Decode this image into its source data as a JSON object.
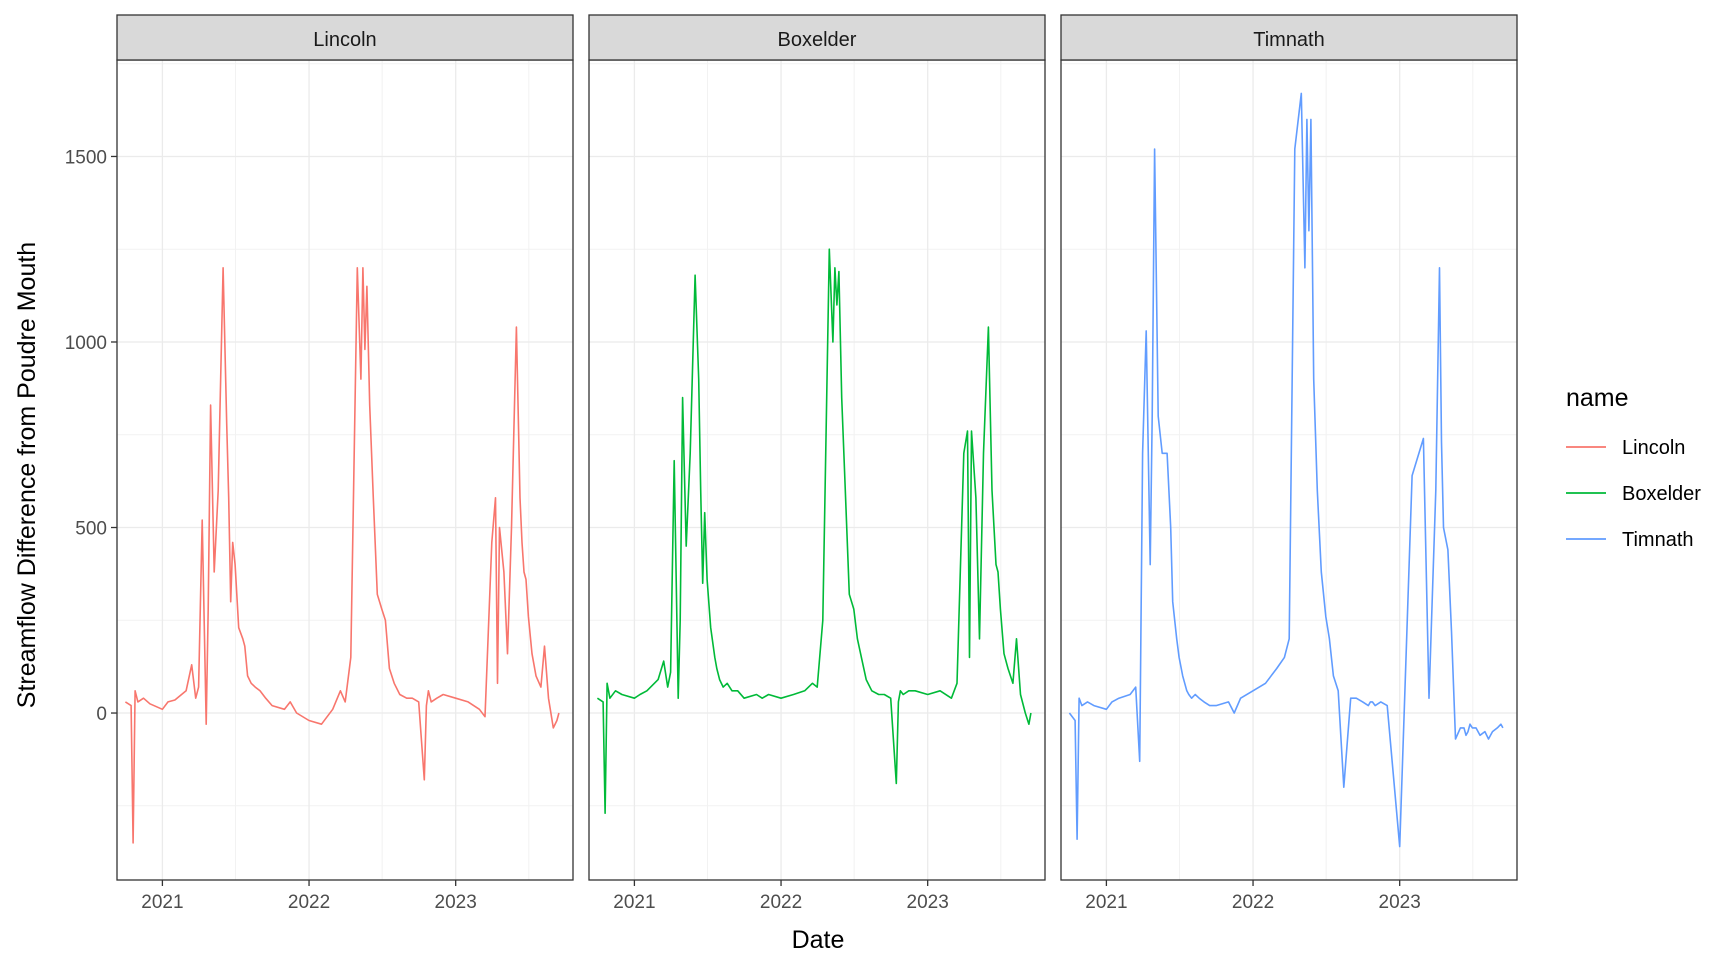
{
  "chart_data": {
    "type": "line",
    "layout": "facet",
    "xlabel": "Date",
    "ylabel": "Streamflow Difference from Poudre Mouth",
    "x_ticks": [
      "2021",
      "2022",
      "2023"
    ],
    "y_ticks": [
      0,
      500,
      1000,
      1500
    ],
    "xlim": [
      "2020-09-10",
      "2023-10-20"
    ],
    "ylim": [
      -450,
      1760
    ],
    "grid": true,
    "legend": {
      "title": "name",
      "position": "right",
      "entries": [
        "Lincoln",
        "Boxelder",
        "Timnath"
      ]
    },
    "colors": {
      "Lincoln": "#F8766D",
      "Boxelder": "#00BA38",
      "Timnath": "#619CFF"
    },
    "panels": [
      {
        "name": "Lincoln",
        "x": [
          "2020-10-01",
          "2020-10-15",
          "2020-10-20",
          "2020-10-25",
          "2020-11-01",
          "2020-11-15",
          "2020-12-01",
          "2021-01-01",
          "2021-01-15",
          "2021-02-01",
          "2021-03-01",
          "2021-03-15",
          "2021-03-25",
          "2021-04-01",
          "2021-04-10",
          "2021-04-20",
          "2021-04-25",
          "2021-05-01",
          "2021-05-10",
          "2021-05-20",
          "2021-06-01",
          "2021-06-10",
          "2021-06-15",
          "2021-06-20",
          "2021-06-25",
          "2021-07-01",
          "2021-07-10",
          "2021-07-20",
          "2021-07-25",
          "2021-08-01",
          "2021-08-10",
          "2021-08-20",
          "2021-09-01",
          "2021-09-15",
          "2021-10-01",
          "2021-11-01",
          "2021-11-15",
          "2021-12-01",
          "2022-01-01",
          "2022-02-01",
          "2022-03-01",
          "2022-03-20",
          "2022-04-01",
          "2022-04-15",
          "2022-05-01",
          "2022-05-10",
          "2022-05-15",
          "2022-05-20",
          "2022-05-25",
          "2022-06-01",
          "2022-06-10",
          "2022-06-20",
          "2022-07-01",
          "2022-07-10",
          "2022-07-20",
          "2022-08-01",
          "2022-08-15",
          "2022-09-01",
          "2022-09-15",
          "2022-10-01",
          "2022-10-15",
          "2022-10-20",
          "2022-10-25",
          "2022-11-01",
          "2022-11-15",
          "2022-12-01",
          "2023-01-01",
          "2023-02-01",
          "2023-03-01",
          "2023-03-15",
          "2023-04-01",
          "2023-04-10",
          "2023-04-15",
          "2023-04-20",
          "2023-05-01",
          "2023-05-10",
          "2023-05-20",
          "2023-06-01",
          "2023-06-10",
          "2023-06-15",
          "2023-06-20",
          "2023-06-25",
          "2023-07-01",
          "2023-07-10",
          "2023-07-20",
          "2023-08-01",
          "2023-08-10",
          "2023-08-20",
          "2023-09-01",
          "2023-09-10",
          "2023-09-15"
        ],
        "y": [
          30,
          20,
          -350,
          60,
          30,
          40,
          25,
          10,
          30,
          35,
          60,
          130,
          40,
          70,
          520,
          -30,
          280,
          830,
          380,
          600,
          1200,
          780,
          580,
          300,
          460,
          400,
          230,
          200,
          180,
          100,
          80,
          70,
          60,
          40,
          20,
          10,
          30,
          0,
          -20,
          -30,
          10,
          60,
          30,
          150,
          1200,
          900,
          1200,
          980,
          1150,
          830,
          580,
          320,
          280,
          250,
          120,
          80,
          50,
          40,
          40,
          30,
          -180,
          20,
          60,
          30,
          40,
          50,
          40,
          30,
          10,
          -10,
          460,
          580,
          80,
          500,
          380,
          160,
          500,
          1040,
          580,
          460,
          380,
          360,
          260,
          160,
          100,
          70,
          180,
          40,
          -40,
          -20,
          0
        ]
      },
      {
        "name": "Boxelder",
        "x": [
          "2020-10-01",
          "2020-10-15",
          "2020-10-20",
          "2020-10-25",
          "2020-11-01",
          "2020-11-15",
          "2020-12-01",
          "2021-01-01",
          "2021-01-15",
          "2021-02-01",
          "2021-03-01",
          "2021-03-15",
          "2021-03-25",
          "2021-04-01",
          "2021-04-10",
          "2021-04-20",
          "2021-04-25",
          "2021-05-01",
          "2021-05-10",
          "2021-05-20",
          "2021-06-01",
          "2021-06-10",
          "2021-06-15",
          "2021-06-20",
          "2021-06-25",
          "2021-07-01",
          "2021-07-10",
          "2021-07-20",
          "2021-07-25",
          "2021-08-01",
          "2021-08-10",
          "2021-08-20",
          "2021-09-01",
          "2021-09-15",
          "2021-10-01",
          "2021-11-01",
          "2021-11-15",
          "2021-12-01",
          "2022-01-01",
          "2022-02-01",
          "2022-03-01",
          "2022-03-20",
          "2022-04-01",
          "2022-04-15",
          "2022-05-01",
          "2022-05-10",
          "2022-05-15",
          "2022-05-20",
          "2022-05-25",
          "2022-06-01",
          "2022-06-10",
          "2022-06-20",
          "2022-07-01",
          "2022-07-10",
          "2022-07-20",
          "2022-08-01",
          "2022-08-15",
          "2022-09-01",
          "2022-09-15",
          "2022-10-01",
          "2022-10-15",
          "2022-10-20",
          "2022-10-25",
          "2022-11-01",
          "2022-11-15",
          "2022-12-01",
          "2023-01-01",
          "2023-02-01",
          "2023-03-01",
          "2023-03-15",
          "2023-04-01",
          "2023-04-10",
          "2023-04-15",
          "2023-04-20",
          "2023-05-01",
          "2023-05-10",
          "2023-05-20",
          "2023-06-01",
          "2023-06-10",
          "2023-06-15",
          "2023-06-20",
          "2023-06-25",
          "2023-07-01",
          "2023-07-10",
          "2023-07-20",
          "2023-08-01",
          "2023-08-10",
          "2023-08-20",
          "2023-09-01",
          "2023-09-10",
          "2023-09-15"
        ],
        "y": [
          40,
          30,
          -270,
          80,
          40,
          60,
          50,
          40,
          50,
          60,
          90,
          140,
          70,
          110,
          680,
          40,
          250,
          850,
          450,
          700,
          1180,
          900,
          600,
          350,
          540,
          360,
          230,
          150,
          120,
          90,
          70,
          80,
          60,
          60,
          40,
          50,
          40,
          50,
          40,
          50,
          60,
          80,
          70,
          250,
          1250,
          1000,
          1200,
          1100,
          1190,
          850,
          600,
          320,
          280,
          200,
          150,
          90,
          60,
          50,
          50,
          40,
          -190,
          30,
          60,
          50,
          60,
          60,
          50,
          60,
          40,
          80,
          700,
          760,
          150,
          760,
          580,
          200,
          700,
          1040,
          600,
          500,
          400,
          380,
          280,
          160,
          120,
          80,
          200,
          50,
          0,
          -30,
          0
        ]
      },
      {
        "name": "Timnath",
        "x": [
          "2020-10-01",
          "2020-10-15",
          "2020-10-20",
          "2020-10-25",
          "2020-11-01",
          "2020-11-15",
          "2020-12-01",
          "2021-01-01",
          "2021-01-15",
          "2021-02-01",
          "2021-03-01",
          "2021-03-15",
          "2021-03-25",
          "2021-04-01",
          "2021-04-10",
          "2021-04-20",
          "2021-04-25",
          "2021-05-01",
          "2021-05-10",
          "2021-05-20",
          "2021-06-01",
          "2021-06-10",
          "2021-06-15",
          "2021-06-20",
          "2021-06-25",
          "2021-07-01",
          "2021-07-10",
          "2021-07-20",
          "2021-07-25",
          "2021-08-01",
          "2021-08-10",
          "2021-08-20",
          "2021-09-01",
          "2021-09-15",
          "2021-10-01",
          "2021-11-01",
          "2021-11-15",
          "2021-12-01",
          "2022-01-01",
          "2022-02-01",
          "2022-03-01",
          "2022-03-20",
          "2022-04-01",
          "2022-04-15",
          "2022-05-01",
          "2022-05-10",
          "2022-05-15",
          "2022-05-20",
          "2022-05-25",
          "2022-06-01",
          "2022-06-10",
          "2022-06-20",
          "2022-07-01",
          "2022-07-10",
          "2022-07-20",
          "2022-08-01",
          "2022-08-15",
          "2022-09-01",
          "2022-09-15",
          "2022-10-01",
          "2022-10-15",
          "2022-10-20",
          "2022-10-25",
          "2022-11-01",
          "2022-11-15",
          "2022-12-01",
          "2023-01-01",
          "2023-02-01",
          "2023-03-01",
          "2023-03-15",
          "2023-04-01",
          "2023-04-10",
          "2023-04-15",
          "2023-04-20",
          "2023-05-01",
          "2023-05-10",
          "2023-05-20",
          "2023-06-01",
          "2023-06-10",
          "2023-06-15",
          "2023-06-20",
          "2023-06-25",
          "2023-07-01",
          "2023-07-10",
          "2023-07-20",
          "2023-08-01",
          "2023-08-10",
          "2023-08-20",
          "2023-09-01",
          "2023-09-10",
          "2023-09-15"
        ],
        "y": [
          0,
          -20,
          -340,
          40,
          20,
          30,
          20,
          10,
          30,
          40,
          50,
          70,
          -130,
          700,
          1030,
          400,
          800,
          1520,
          800,
          700,
          700,
          500,
          300,
          250,
          200,
          150,
          100,
          60,
          50,
          40,
          50,
          40,
          30,
          20,
          20,
          30,
          0,
          40,
          60,
          80,
          120,
          150,
          200,
          1520,
          1670,
          1200,
          1600,
          1300,
          1600,
          900,
          600,
          380,
          260,
          200,
          100,
          60,
          -200,
          40,
          40,
          30,
          20,
          30,
          30,
          20,
          30,
          20,
          -360,
          640,
          740,
          40,
          600,
          1200,
          730,
          500,
          440,
          220,
          -70,
          -40,
          -40,
          -60,
          -50,
          -30,
          -40,
          -40,
          -60,
          -50,
          -70,
          -50,
          -40,
          -30,
          -40
        ]
      }
    ]
  }
}
